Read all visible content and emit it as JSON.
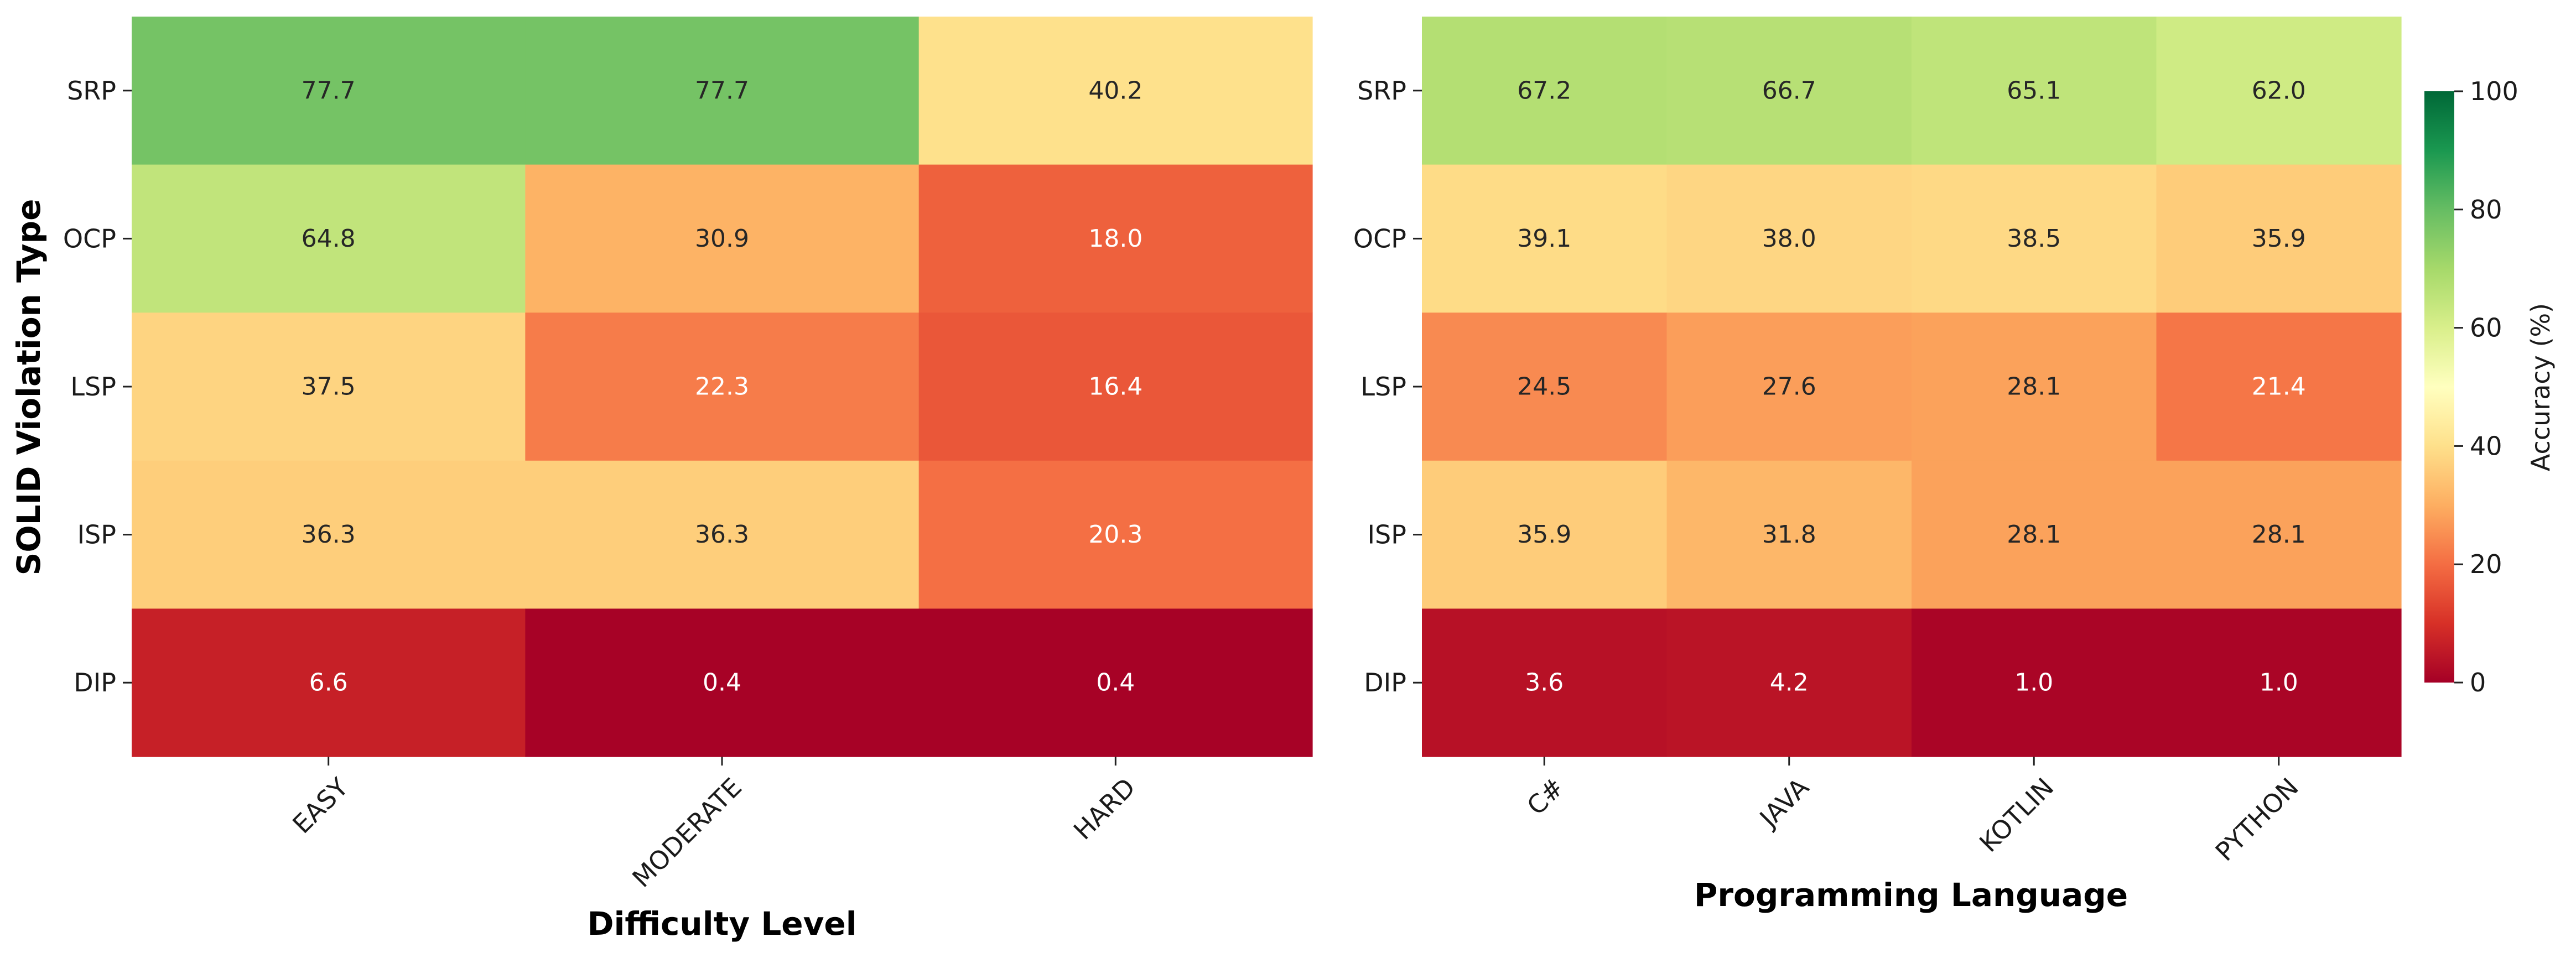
{
  "ylabel": "SOLID Violation Type",
  "colorbar": {
    "label": "Accuracy (%)",
    "range": [
      0,
      100
    ],
    "ticks": [
      0,
      20,
      40,
      60,
      80,
      100
    ],
    "colormap": "RdYlGn"
  },
  "chart_data": [
    {
      "type": "heatmap",
      "xlabel": "Difficulty Level",
      "ylabel": "SOLID Violation Type",
      "x_categories": [
        "EASY",
        "MODERATE",
        "HARD"
      ],
      "y_categories": [
        "SRP",
        "OCP",
        "LSP",
        "ISP",
        "DIP"
      ],
      "values": [
        [
          77.7,
          77.7,
          40.2
        ],
        [
          64.8,
          30.9,
          18.0
        ],
        [
          37.5,
          22.3,
          16.4
        ],
        [
          36.3,
          36.3,
          20.3
        ],
        [
          6.6,
          0.4,
          0.4
        ]
      ]
    },
    {
      "type": "heatmap",
      "xlabel": "Programming Language",
      "ylabel": "",
      "x_categories": [
        "C#",
        "JAVA",
        "KOTLIN",
        "PYTHON"
      ],
      "y_categories": [
        "SRP",
        "OCP",
        "LSP",
        "ISP",
        "DIP"
      ],
      "values": [
        [
          67.2,
          66.7,
          65.1,
          62.0
        ],
        [
          39.1,
          38.0,
          38.5,
          35.9
        ],
        [
          24.5,
          27.6,
          28.1,
          21.4
        ],
        [
          35.9,
          31.8,
          28.1,
          28.1
        ],
        [
          3.6,
          4.2,
          1.0,
          1.0
        ]
      ]
    }
  ]
}
